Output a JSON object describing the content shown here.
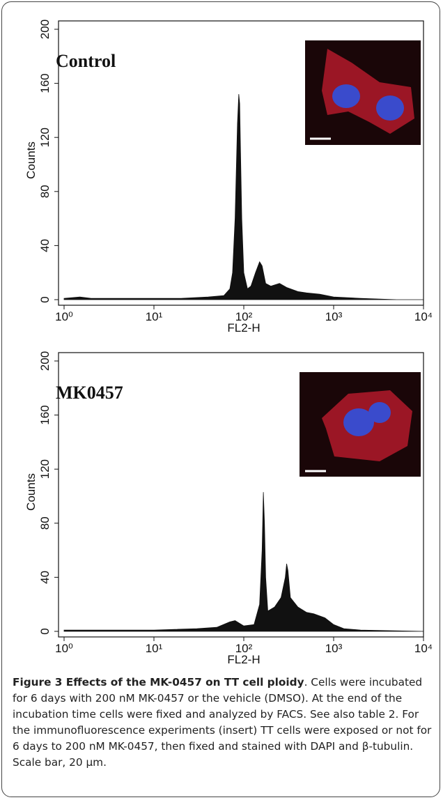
{
  "chart_data": [
    {
      "type": "area",
      "title": "Control",
      "xlabel": "FL2-H",
      "ylabel": "Counts",
      "color": "#111111",
      "xscale": "log",
      "x": [
        1,
        1.5,
        2,
        3,
        5,
        10,
        20,
        40,
        60,
        70,
        75,
        80,
        85,
        88,
        90,
        92,
        95,
        100,
        110,
        120,
        135,
        150,
        160,
        175,
        200,
        250,
        300,
        400,
        500,
        700,
        1000,
        2000,
        5000,
        10000
      ],
      "values": [
        1,
        2,
        1,
        1,
        1,
        1,
        1,
        2,
        3,
        8,
        20,
        60,
        130,
        152,
        145,
        110,
        60,
        20,
        8,
        10,
        20,
        28,
        25,
        12,
        10,
        12,
        9,
        6,
        5,
        4,
        2,
        1,
        0,
        0
      ],
      "xlim": [
        1,
        10000
      ],
      "xticks": [
        {
          "value": 1,
          "label": "10⁰"
        },
        {
          "value": 10,
          "label": "10¹"
        },
        {
          "value": 100,
          "label": "10²"
        },
        {
          "value": 1000,
          "label": "10³"
        },
        {
          "value": 10000,
          "label": "10⁴"
        }
      ],
      "ylim": [
        0,
        200
      ],
      "yticks": [
        0,
        40,
        80,
        120,
        160,
        200
      ]
    },
    {
      "type": "area",
      "title": "MK0457",
      "xlabel": "FL2-H",
      "ylabel": "Counts",
      "color": "#111111",
      "xscale": "log",
      "x": [
        1,
        5,
        10,
        30,
        50,
        70,
        80,
        100,
        130,
        150,
        160,
        165,
        170,
        175,
        185,
        220,
        260,
        290,
        300,
        310,
        330,
        400,
        500,
        600,
        800,
        1000,
        1300,
        2000,
        10000
      ],
      "values": [
        1,
        1,
        1,
        2,
        3,
        7,
        8,
        4,
        5,
        20,
        60,
        103,
        80,
        40,
        15,
        18,
        25,
        40,
        50,
        45,
        25,
        18,
        14,
        13,
        10,
        5,
        2,
        1,
        0
      ],
      "xlim": [
        1,
        10000
      ],
      "xticks": [
        {
          "value": 1,
          "label": "10⁰"
        },
        {
          "value": 10,
          "label": "10¹"
        },
        {
          "value": 100,
          "label": "10²"
        },
        {
          "value": 1000,
          "label": "10³"
        },
        {
          "value": 10000,
          "label": "10⁴"
        }
      ],
      "ylim": [
        0,
        200
      ],
      "yticks": [
        0,
        40,
        80,
        120,
        160,
        200
      ]
    }
  ],
  "caption": {
    "title": "Figure 3 Effects of the MK-0457 on TT cell ploidy",
    "text": ". Cells were incubated for 6 days with 200 nM MK-0457 or the vehicle (DMSO). At the end of the incubation time cells were fixed and analyzed by FACS. See also table 2. For the immunofluorescence experiments (insert) TT cells were exposed or not for 6 days to 200 nM MK-0457, then fixed and stained with DAPI and β-tubulin. Scale bar, 20 μm."
  }
}
